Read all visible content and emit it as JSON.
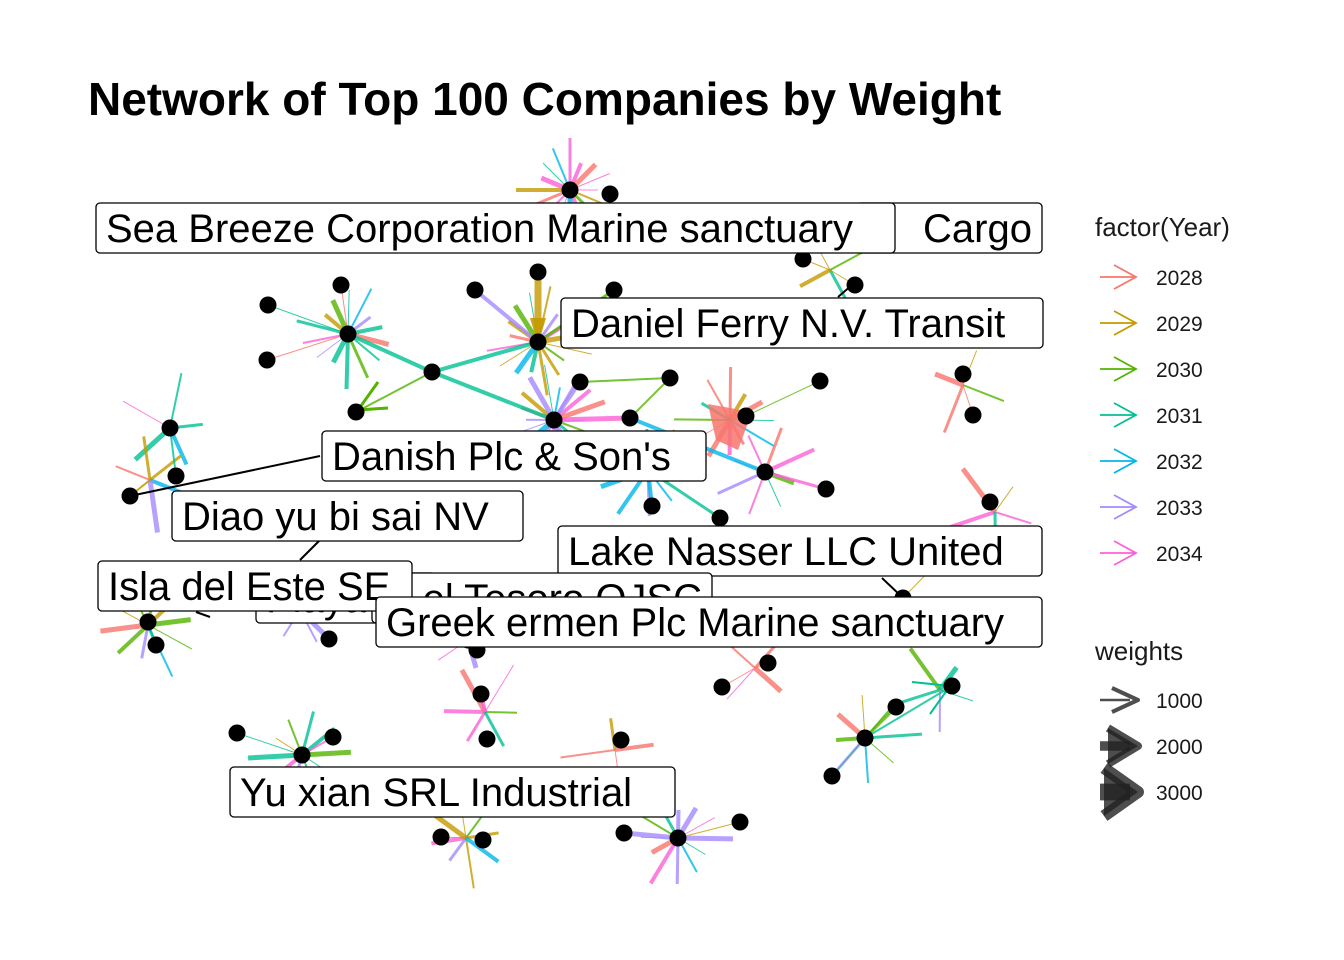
{
  "title": "Network of Top 100 Companies by Weight",
  "colors": {
    "2028": "#F8766D",
    "2029": "#C49A00",
    "2030": "#53B400",
    "2031": "#00C094",
    "2032": "#00B6EB",
    "2033": "#A58AFF",
    "2034": "#FB61D7"
  },
  "labels": [
    {
      "text": "Sea Breeze Corporation Marine sanctuary"
    },
    {
      "text": "Cargo"
    },
    {
      "text": "Daniel Ferry N.V. Transit"
    },
    {
      "text": "Danish  Plc & Son's"
    },
    {
      "text": "Diao yu bi sai  NV"
    },
    {
      "text": "Lake Nasser  LLC United"
    },
    {
      "text": "Isla del Este SE"
    },
    {
      "text": "el Tesoro OJSC"
    },
    {
      "text": "Playa"
    },
    {
      "text": "Greek ermen Plc Marine sanctuary"
    },
    {
      "text": "Yu xian  SRL Industrial"
    }
  ],
  "legend": {
    "year_title": "factor(Year)",
    "years": [
      "2028",
      "2029",
      "2030",
      "2031",
      "2032",
      "2033",
      "2034"
    ],
    "weight_title": "weights",
    "weights": [
      "1000",
      "2000",
      "3000"
    ]
  }
}
